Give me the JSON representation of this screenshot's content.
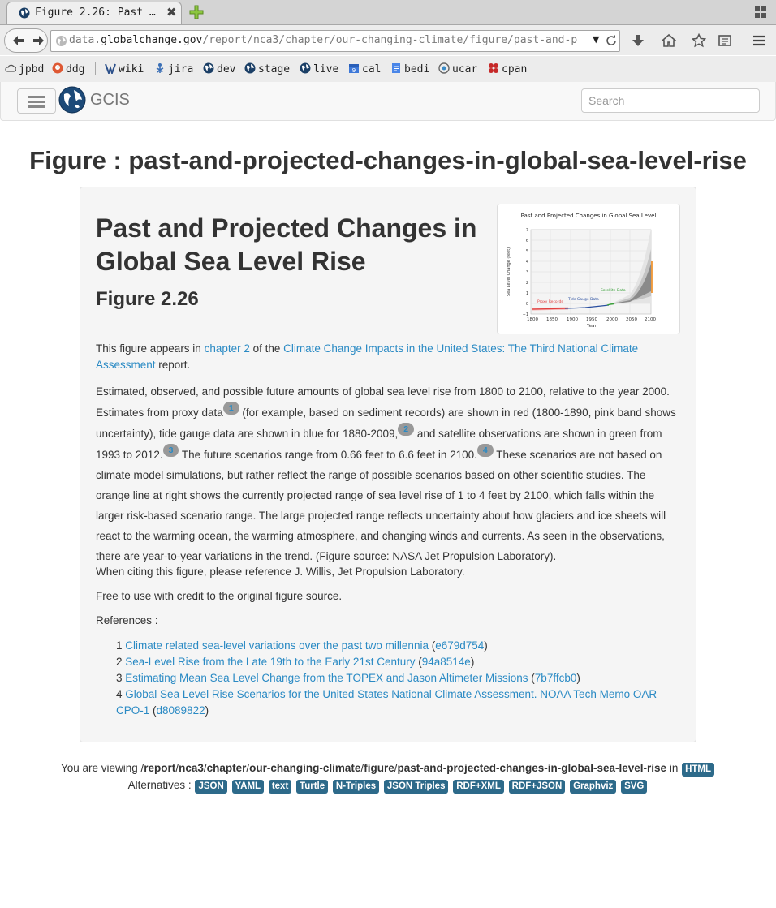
{
  "browser": {
    "tab_title": "Figure 2.26: Past …",
    "tab_close": "✖",
    "url_host_prefix": "data.",
    "url_host_domain": "globalchange.gov",
    "url_path": "/report/nca3/chapter/our-changing-climate/figure/past-and-pr",
    "url_dropdown": "▼"
  },
  "bookmarks": [
    {
      "label": "jpbd",
      "icon": "cloud-icon"
    },
    {
      "label": "ddg",
      "icon": "duckduckgo-icon"
    },
    {
      "label": "wiki",
      "icon": "wiki-icon"
    },
    {
      "label": "jira",
      "icon": "jira-icon"
    },
    {
      "label": "dev",
      "icon": "globe-icon"
    },
    {
      "label": "stage",
      "icon": "globe-icon"
    },
    {
      "label": "live",
      "icon": "globe-icon"
    },
    {
      "label": "cal",
      "icon": "calendar-icon"
    },
    {
      "label": "bedi",
      "icon": "document-icon"
    },
    {
      "label": "ucar",
      "icon": "ucar-icon"
    },
    {
      "label": "cpan",
      "icon": "cpan-icon"
    }
  ],
  "header": {
    "brand": "GCIS",
    "search_placeholder": "Search"
  },
  "page": {
    "title": "Figure : past-and-projected-changes-in-global-sea-level-rise",
    "figure_heading": "Past and Projected Changes in Global Sea Level Rise",
    "figure_number": "Figure 2.26"
  },
  "thumbnail": {
    "title": "Past and Projected Changes in Global Sea Level",
    "ylabel": "Sea Level Change (feet)",
    "xlabel": "Year",
    "y_ticks": [
      "7",
      "6",
      "5",
      "4",
      "3",
      "2",
      "1",
      "0",
      "−1"
    ],
    "x_ticks": [
      "1800",
      "1850",
      "1900",
      "1950",
      "2000",
      "2050",
      "2100"
    ],
    "label_proxy": "Proxy Records",
    "label_tide": "Tide Gauge Data",
    "label_satellite": "Satellite Data",
    "colors": {
      "proxy": "#e04040",
      "tide": "#2a4fa0",
      "satellite": "#3aa03a",
      "projection": "#f08a1c",
      "scenario": "#777777"
    }
  },
  "appears_in": {
    "prefix": "This figure appears in ",
    "chapter_link": "chapter 2",
    "middle": " of the ",
    "report_link": "Climate Change Impacts in the United States: The Third National Climate Assessment",
    "suffix": " report."
  },
  "caption": {
    "p1": "Estimated, observed, and possible future amounts of global sea level rise from 1800 to 2100, relative to the year 2000. Estimates from proxy data",
    "fn1": "1",
    "p2": " (for example, based on sediment records) are shown in red (1800-1890, pink band shows uncertainty), tide gauge data are shown in blue for 1880-2009,",
    "fn2": "2",
    "p3": " and satellite observations are shown in green from 1993 to 2012.",
    "fn3": "3",
    "p4": " The future scenarios range from 0.66 feet to 6.6 feet in 2100.",
    "fn4": "4",
    "p5": " These scenarios are not based on climate model simulations, but rather reflect the range of possible scenarios based on other scientific studies. The orange line at right shows the currently projected range of sea level rise of 1 to 4 feet by 2100, which falls within the larger risk-based scenario range. The large projected range reflects uncertainty about how glaciers and ice sheets will react to the warming ocean, the warming atmosphere, and changing winds and currents. As seen in the observations, there are year-to-year variations in the trend. (Figure source: NASA Jet Propulsion Laboratory)."
  },
  "citation": "When citing this figure, please reference J. Willis, Jet Propulsion Laboratory.",
  "license": "Free to use with credit to the original figure source.",
  "references_label": "References :",
  "references": [
    {
      "num": "1",
      "title": "Climate related sea-level variations over the past two millennia",
      "id": "e679d754"
    },
    {
      "num": "2",
      "title": "Sea-Level Rise from the Late 19th to the Early 21st Century",
      "id": "94a8514e"
    },
    {
      "num": "3",
      "title": "Estimating Mean Sea Level Change from the TOPEX and Jason Altimeter Missions",
      "id": "7b7ffcb0"
    },
    {
      "num": "4",
      "title": "Global Sea Level Rise Scenarios for the United States National Climate Assessment. NOAA Tech Memo OAR CPO-1",
      "id": "d8089822"
    }
  ],
  "footer": {
    "viewing_prefix": "You are viewing /",
    "path_parts": [
      "report",
      "nca3",
      "chapter",
      "our-changing-climate",
      "figure",
      "past-and-projected-changes-in-global-sea-level-rise"
    ],
    "in_word": " in ",
    "current_format": "HTML",
    "alternatives_label": "Alternatives : ",
    "alternatives": [
      "JSON",
      "YAML",
      "text",
      "Turtle",
      "N-Triples",
      "JSON Triples",
      "RDF+XML",
      "RDF+JSON",
      "Graphviz",
      "SVG"
    ]
  }
}
